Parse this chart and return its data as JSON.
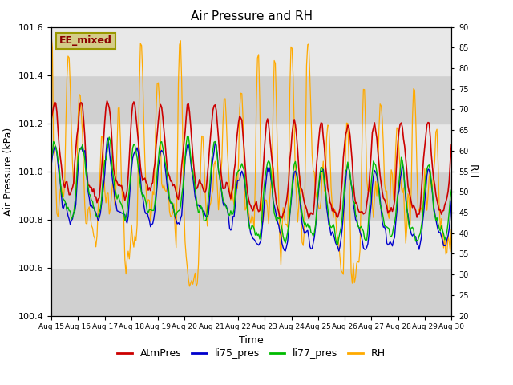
{
  "title": "Air Pressure and RH",
  "xlabel": "Time",
  "ylabel_left": "Air Pressure (kPa)",
  "ylabel_right": "RH",
  "annotation": "EE_mixed",
  "left_ylim": [
    100.4,
    101.6
  ],
  "right_ylim": [
    20,
    90
  ],
  "left_yticks": [
    100.4,
    100.6,
    100.8,
    101.0,
    101.2,
    101.4,
    101.6
  ],
  "right_yticks": [
    20,
    25,
    30,
    35,
    40,
    45,
    50,
    55,
    60,
    65,
    70,
    75,
    80,
    85,
    90
  ],
  "colors": {
    "AtmPres": "#cc0000",
    "li75_pres": "#0000cc",
    "li77_pres": "#00bb00",
    "RH": "#ffaa00"
  },
  "legend_labels": [
    "AtmPres",
    "li75_pres",
    "li77_pres",
    "RH"
  ],
  "bg_color": "#e0e0e0",
  "band_light": "#e8e8e8",
  "band_dark": "#d0d0d0",
  "annotation_box_color": "#d4cc88",
  "annotation_text_color": "#8b0000",
  "annotation_edge_color": "#999900"
}
